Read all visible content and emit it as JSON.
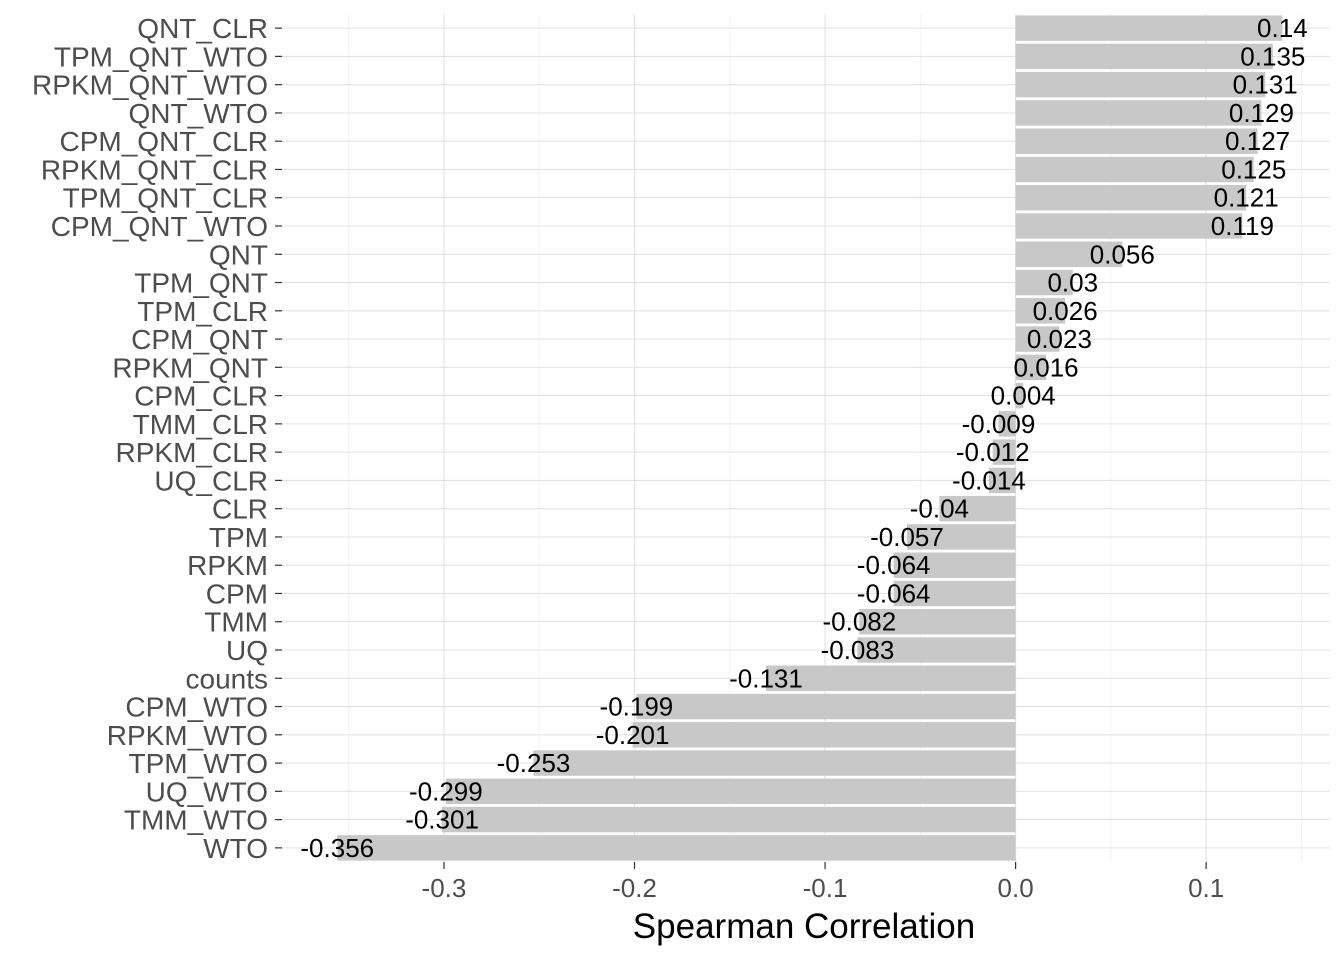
{
  "chart_data": {
    "type": "bar",
    "orientation": "horizontal",
    "title": "",
    "xlabel": "Spearman Correlation",
    "ylabel": "",
    "xlim": [
      -0.385,
      0.165
    ],
    "xticks": [
      -0.3,
      -0.2,
      -0.1,
      0.0,
      0.1
    ],
    "xtick_labels": [
      "-0.3",
      "-0.2",
      "-0.1",
      "0.0",
      "0.1"
    ],
    "grid": true,
    "legend": "none",
    "bar_color": "#c8c8c8",
    "categories": [
      "QNT_CLR",
      "TPM_QNT_WTO",
      "RPKM_QNT_WTO",
      "QNT_WTO",
      "CPM_QNT_CLR",
      "RPKM_QNT_CLR",
      "TPM_QNT_CLR",
      "CPM_QNT_WTO",
      "QNT",
      "TPM_QNT",
      "TPM_CLR",
      "CPM_QNT",
      "RPKM_QNT",
      "CPM_CLR",
      "TMM_CLR",
      "RPKM_CLR",
      "UQ_CLR",
      "CLR",
      "TPM",
      "RPKM",
      "CPM",
      "TMM",
      "UQ",
      "counts",
      "CPM_WTO",
      "RPKM_WTO",
      "TPM_WTO",
      "UQ_WTO",
      "TMM_WTO",
      "WTO"
    ],
    "values": [
      0.14,
      0.135,
      0.131,
      0.129,
      0.127,
      0.125,
      0.121,
      0.119,
      0.056,
      0.03,
      0.026,
      0.023,
      0.016,
      0.004,
      -0.009,
      -0.012,
      -0.014,
      -0.04,
      -0.057,
      -0.064,
      -0.064,
      -0.082,
      -0.083,
      -0.131,
      -0.199,
      -0.201,
      -0.253,
      -0.299,
      -0.301,
      -0.356
    ],
    "value_labels": [
      "0.14",
      "0.135",
      "0.131",
      "0.129",
      "0.127",
      "0.125",
      "0.121",
      "0.119",
      "0.056",
      "0.03",
      "0.026",
      "0.023",
      "0.016",
      "0.004",
      "-0.009",
      "-0.012",
      "-0.014",
      "-0.04",
      "-0.057",
      "-0.064",
      "-0.064",
      "-0.082",
      "-0.083",
      "-0.131",
      "-0.199",
      "-0.201",
      "-0.253",
      "-0.299",
      "-0.301",
      "-0.356"
    ]
  }
}
